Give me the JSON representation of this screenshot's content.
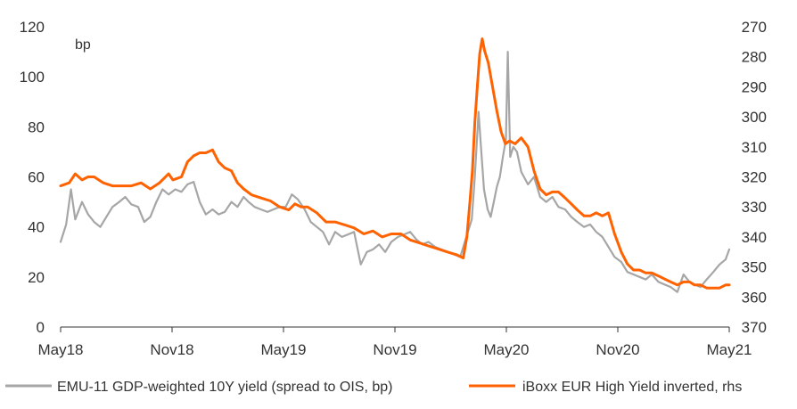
{
  "chart_data": {
    "type": "line",
    "unit_label": "bp",
    "x_ticks": [
      "May18",
      "Nov18",
      "May19",
      "Nov19",
      "May20",
      "Nov20",
      "May21"
    ],
    "y_left": {
      "range": [
        0,
        120
      ],
      "ticks": [
        0,
        20,
        40,
        60,
        80,
        100,
        120
      ]
    },
    "y_right": {
      "range": [
        270,
        370
      ],
      "inverted": true,
      "ticks": [
        270,
        280,
        290,
        300,
        310,
        320,
        330,
        340,
        350,
        360,
        370
      ]
    },
    "grid": false,
    "legend_position": "bottom",
    "series": [
      {
        "name": "EMU-11 GDP-weighted 10Y yield (spread to OIS, bp)",
        "axis": "left",
        "color": "#a6a6a6",
        "points": [
          [
            "2018-05-01",
            34
          ],
          [
            "2018-05-10",
            41
          ],
          [
            "2018-05-18",
            55
          ],
          [
            "2018-05-25",
            43
          ],
          [
            "2018-06-05",
            50
          ],
          [
            "2018-06-15",
            45
          ],
          [
            "2018-06-25",
            42
          ],
          [
            "2018-07-05",
            40
          ],
          [
            "2018-07-15",
            44
          ],
          [
            "2018-07-25",
            48
          ],
          [
            "2018-08-05",
            50
          ],
          [
            "2018-08-15",
            52
          ],
          [
            "2018-08-25",
            49
          ],
          [
            "2018-09-05",
            48
          ],
          [
            "2018-09-15",
            42
          ],
          [
            "2018-09-25",
            44
          ],
          [
            "2018-10-05",
            50
          ],
          [
            "2018-10-15",
            55
          ],
          [
            "2018-10-25",
            53
          ],
          [
            "2018-11-05",
            55
          ],
          [
            "2018-11-15",
            54
          ],
          [
            "2018-11-25",
            57
          ],
          [
            "2018-12-05",
            58
          ],
          [
            "2018-12-15",
            50
          ],
          [
            "2018-12-25",
            45
          ],
          [
            "2019-01-05",
            47
          ],
          [
            "2019-01-15",
            45
          ],
          [
            "2019-01-25",
            46
          ],
          [
            "2019-02-05",
            50
          ],
          [
            "2019-02-15",
            48
          ],
          [
            "2019-02-25",
            52
          ],
          [
            "2019-03-05",
            50
          ],
          [
            "2019-03-15",
            48
          ],
          [
            "2019-03-25",
            47
          ],
          [
            "2019-04-05",
            46
          ],
          [
            "2019-04-15",
            47
          ],
          [
            "2019-04-25",
            48
          ],
          [
            "2019-05-05",
            48
          ],
          [
            "2019-05-15",
            53
          ],
          [
            "2019-05-25",
            51
          ],
          [
            "2019-06-05",
            47
          ],
          [
            "2019-06-15",
            42
          ],
          [
            "2019-06-25",
            40
          ],
          [
            "2019-07-05",
            38
          ],
          [
            "2019-07-15",
            33
          ],
          [
            "2019-07-25",
            38
          ],
          [
            "2019-08-05",
            36
          ],
          [
            "2019-08-15",
            37
          ],
          [
            "2019-08-25",
            38
          ],
          [
            "2019-09-05",
            25
          ],
          [
            "2019-09-15",
            30
          ],
          [
            "2019-09-25",
            31
          ],
          [
            "2019-10-05",
            33
          ],
          [
            "2019-10-15",
            30
          ],
          [
            "2019-10-25",
            34
          ],
          [
            "2019-11-05",
            36
          ],
          [
            "2019-11-15",
            37
          ],
          [
            "2019-11-25",
            38
          ],
          [
            "2019-12-05",
            35
          ],
          [
            "2019-12-15",
            33
          ],
          [
            "2019-12-25",
            34
          ],
          [
            "2020-01-05",
            32
          ],
          [
            "2020-01-15",
            31
          ],
          [
            "2020-01-25",
            30
          ],
          [
            "2020-02-05",
            29
          ],
          [
            "2020-02-15",
            28
          ],
          [
            "2020-02-25",
            36
          ],
          [
            "2020-03-05",
            43
          ],
          [
            "2020-03-10",
            60
          ],
          [
            "2020-03-16",
            86
          ],
          [
            "2020-03-20",
            72
          ],
          [
            "2020-03-25",
            55
          ],
          [
            "2020-03-31",
            47
          ],
          [
            "2020-04-05",
            44
          ],
          [
            "2020-04-10",
            50
          ],
          [
            "2020-04-15",
            56
          ],
          [
            "2020-04-20",
            60
          ],
          [
            "2020-04-25",
            68
          ],
          [
            "2020-04-30",
            75
          ],
          [
            "2020-05-03",
            110
          ],
          [
            "2020-05-07",
            68
          ],
          [
            "2020-05-12",
            72
          ],
          [
            "2020-05-18",
            70
          ],
          [
            "2020-05-25",
            62
          ],
          [
            "2020-06-05",
            57
          ],
          [
            "2020-06-15",
            60
          ],
          [
            "2020-06-25",
            52
          ],
          [
            "2020-07-05",
            50
          ],
          [
            "2020-07-15",
            52
          ],
          [
            "2020-07-25",
            48
          ],
          [
            "2020-08-05",
            47
          ],
          [
            "2020-08-15",
            44
          ],
          [
            "2020-08-25",
            42
          ],
          [
            "2020-09-05",
            40
          ],
          [
            "2020-09-15",
            41
          ],
          [
            "2020-09-25",
            38
          ],
          [
            "2020-10-05",
            36
          ],
          [
            "2020-10-15",
            32
          ],
          [
            "2020-10-25",
            28
          ],
          [
            "2020-11-05",
            26
          ],
          [
            "2020-11-15",
            22
          ],
          [
            "2020-11-25",
            21
          ],
          [
            "2020-12-05",
            20
          ],
          [
            "2020-12-15",
            19
          ],
          [
            "2020-12-25",
            21
          ],
          [
            "2021-01-05",
            18
          ],
          [
            "2021-01-15",
            17
          ],
          [
            "2021-01-25",
            16
          ],
          [
            "2021-02-05",
            14
          ],
          [
            "2021-02-15",
            21
          ],
          [
            "2021-02-25",
            18
          ],
          [
            "2021-03-05",
            17
          ],
          [
            "2021-03-15",
            16
          ],
          [
            "2021-03-25",
            19
          ],
          [
            "2021-04-05",
            22
          ],
          [
            "2021-04-15",
            25
          ],
          [
            "2021-04-25",
            27
          ],
          [
            "2021-05-01",
            31
          ]
        ]
      },
      {
        "name": "iBoxx EUR High Yield inverted, rhs",
        "axis": "right",
        "color": "#ff6200",
        "points": [
          [
            "2018-05-01",
            323
          ],
          [
            "2018-05-15",
            322
          ],
          [
            "2018-05-25",
            319
          ],
          [
            "2018-06-05",
            321
          ],
          [
            "2018-06-15",
            320
          ],
          [
            "2018-06-25",
            320
          ],
          [
            "2018-07-10",
            322
          ],
          [
            "2018-07-25",
            323
          ],
          [
            "2018-08-10",
            323
          ],
          [
            "2018-08-25",
            323
          ],
          [
            "2018-09-10",
            322
          ],
          [
            "2018-09-25",
            324
          ],
          [
            "2018-10-10",
            322
          ],
          [
            "2018-10-25",
            319
          ],
          [
            "2018-11-01",
            321
          ],
          [
            "2018-11-15",
            320
          ],
          [
            "2018-11-25",
            315
          ],
          [
            "2018-12-05",
            313
          ],
          [
            "2018-12-15",
            312
          ],
          [
            "2018-12-25",
            312
          ],
          [
            "2019-01-05",
            311
          ],
          [
            "2019-01-15",
            315
          ],
          [
            "2019-01-25",
            317
          ],
          [
            "2019-02-05",
            318
          ],
          [
            "2019-02-15",
            322
          ],
          [
            "2019-02-25",
            324
          ],
          [
            "2019-03-10",
            326
          ],
          [
            "2019-03-25",
            327
          ],
          [
            "2019-04-10",
            328
          ],
          [
            "2019-04-25",
            330
          ],
          [
            "2019-05-10",
            331
          ],
          [
            "2019-05-20",
            329
          ],
          [
            "2019-05-30",
            330
          ],
          [
            "2019-06-10",
            330
          ],
          [
            "2019-06-25",
            332
          ],
          [
            "2019-07-10",
            335
          ],
          [
            "2019-07-25",
            335
          ],
          [
            "2019-08-10",
            336
          ],
          [
            "2019-08-25",
            337
          ],
          [
            "2019-09-10",
            339
          ],
          [
            "2019-09-25",
            338
          ],
          [
            "2019-10-10",
            340
          ],
          [
            "2019-10-25",
            339
          ],
          [
            "2019-11-10",
            339
          ],
          [
            "2019-11-25",
            341
          ],
          [
            "2019-12-10",
            342
          ],
          [
            "2019-12-25",
            343
          ],
          [
            "2020-01-10",
            344
          ],
          [
            "2020-01-25",
            345
          ],
          [
            "2020-02-10",
            346
          ],
          [
            "2020-02-20",
            347
          ],
          [
            "2020-02-26",
            340
          ],
          [
            "2020-03-02",
            328
          ],
          [
            "2020-03-06",
            318
          ],
          [
            "2020-03-10",
            302
          ],
          [
            "2020-03-14",
            290
          ],
          [
            "2020-03-18",
            279
          ],
          [
            "2020-03-22",
            274
          ],
          [
            "2020-03-26",
            278
          ],
          [
            "2020-04-01",
            282
          ],
          [
            "2020-04-08",
            290
          ],
          [
            "2020-04-15",
            298
          ],
          [
            "2020-04-22",
            305
          ],
          [
            "2020-04-29",
            309
          ],
          [
            "2020-05-06",
            308
          ],
          [
            "2020-05-15",
            309
          ],
          [
            "2020-05-25",
            307
          ],
          [
            "2020-06-05",
            310
          ],
          [
            "2020-06-15",
            318
          ],
          [
            "2020-06-25",
            324
          ],
          [
            "2020-07-05",
            326
          ],
          [
            "2020-07-15",
            325
          ],
          [
            "2020-07-25",
            325
          ],
          [
            "2020-08-05",
            327
          ],
          [
            "2020-08-15",
            329
          ],
          [
            "2020-08-25",
            331
          ],
          [
            "2020-09-05",
            333
          ],
          [
            "2020-09-15",
            333
          ],
          [
            "2020-09-25",
            332
          ],
          [
            "2020-10-05",
            333
          ],
          [
            "2020-10-15",
            332
          ],
          [
            "2020-10-25",
            339
          ],
          [
            "2020-11-05",
            345
          ],
          [
            "2020-11-15",
            349
          ],
          [
            "2020-11-25",
            351
          ],
          [
            "2020-12-05",
            351
          ],
          [
            "2020-12-15",
            352
          ],
          [
            "2020-12-25",
            352
          ],
          [
            "2021-01-05",
            353
          ],
          [
            "2021-01-15",
            354
          ],
          [
            "2021-01-25",
            355
          ],
          [
            "2021-02-05",
            356
          ],
          [
            "2021-02-15",
            355
          ],
          [
            "2021-02-25",
            355
          ],
          [
            "2021-03-05",
            356
          ],
          [
            "2021-03-15",
            356
          ],
          [
            "2021-03-25",
            357
          ],
          [
            "2021-04-05",
            357
          ],
          [
            "2021-04-15",
            357
          ],
          [
            "2021-04-25",
            356
          ],
          [
            "2021-05-01",
            356
          ]
        ]
      }
    ]
  }
}
